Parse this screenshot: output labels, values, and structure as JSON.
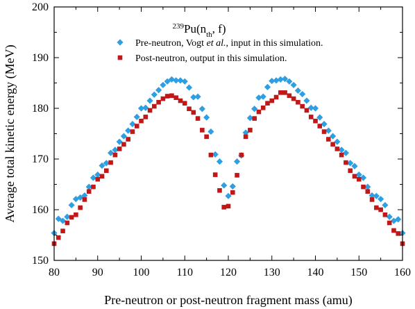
{
  "chart_data": {
    "type": "scatter",
    "title": "",
    "legend_title": {
      "sup": "239",
      "base": "Pu(n",
      "sub": "th",
      "tail": ", f)"
    },
    "xlabel": "Pre-neutron or post-neutron fragment mass (amu)",
    "ylabel": "Average total kinetic energy (MeV)",
    "xlim": [
      80,
      160
    ],
    "ylim": [
      150,
      200
    ],
    "xticks": [
      80,
      90,
      100,
      110,
      120,
      130,
      140,
      150,
      160
    ],
    "yticks": [
      150,
      160,
      170,
      180,
      190,
      200
    ],
    "grid": false,
    "legend_position": "top-center",
    "series": [
      {
        "name_parts": {
          "a": "Pre-neutron, Vogt ",
          "italic": "et al.",
          "b": ", input in this simulation."
        },
        "marker": "diamond",
        "color": "#2e9fe0",
        "points": [
          [
            80,
            155.4
          ],
          [
            81,
            158.2
          ],
          [
            82,
            157.8
          ],
          [
            83,
            158.6
          ],
          [
            84,
            160.9
          ],
          [
            85,
            162.1
          ],
          [
            86,
            162.4
          ],
          [
            87,
            162.8
          ],
          [
            88,
            164.5
          ],
          [
            89,
            166.3
          ],
          [
            90,
            166.9
          ],
          [
            91,
            168.7
          ],
          [
            92,
            169.2
          ],
          [
            93,
            171.2
          ],
          [
            94,
            171.8
          ],
          [
            95,
            173.4
          ],
          [
            96,
            174.5
          ],
          [
            97,
            175.6
          ],
          [
            98,
            176.9
          ],
          [
            99,
            178.3
          ],
          [
            100,
            180.0
          ],
          [
            101,
            180.1
          ],
          [
            102,
            181.5
          ],
          [
            103,
            182.7
          ],
          [
            104,
            183.6
          ],
          [
            105,
            184.6
          ],
          [
            106,
            185.3
          ],
          [
            107,
            185.7
          ],
          [
            108,
            185.5
          ],
          [
            109,
            185.5
          ],
          [
            110,
            185.3
          ],
          [
            111,
            184.1
          ],
          [
            112,
            182.2
          ],
          [
            113,
            182.3
          ],
          [
            114,
            179.9
          ],
          [
            115,
            178.2
          ],
          [
            116,
            175.4
          ],
          [
            117,
            170.9
          ],
          [
            118,
            169.5
          ],
          [
            119,
            164.8
          ],
          [
            120,
            162.7
          ],
          [
            121,
            164.6
          ],
          [
            122,
            169.5
          ],
          [
            123,
            170.7
          ],
          [
            124,
            175.2
          ],
          [
            125,
            178.1
          ],
          [
            126,
            179.9
          ],
          [
            127,
            182.1
          ],
          [
            128,
            182.3
          ],
          [
            129,
            184.2
          ],
          [
            130,
            185.4
          ],
          [
            131,
            185.5
          ],
          [
            132,
            185.7
          ],
          [
            133,
            185.8
          ],
          [
            134,
            185.3
          ],
          [
            135,
            184.6
          ],
          [
            136,
            183.5
          ],
          [
            137,
            182.8
          ],
          [
            138,
            181.5
          ],
          [
            139,
            180.1
          ],
          [
            140,
            180.0
          ],
          [
            141,
            178.2
          ],
          [
            142,
            176.9
          ],
          [
            143,
            175.6
          ],
          [
            144,
            174.5
          ],
          [
            145,
            173.4
          ],
          [
            146,
            171.8
          ],
          [
            147,
            171.2
          ],
          [
            148,
            169.2
          ],
          [
            149,
            168.6
          ],
          [
            150,
            166.9
          ],
          [
            151,
            166.3
          ],
          [
            152,
            164.5
          ],
          [
            153,
            162.8
          ],
          [
            154,
            162.7
          ],
          [
            155,
            162.1
          ],
          [
            156,
            160.9
          ],
          [
            157,
            158.6
          ],
          [
            158,
            157.8
          ],
          [
            159,
            158.1
          ],
          [
            160,
            155.4
          ]
        ]
      },
      {
        "name": "Post-neutron, output in this simulation.",
        "marker": "square",
        "color": "#c01818",
        "points": [
          [
            80,
            153.3
          ],
          [
            81,
            154.5
          ],
          [
            82,
            155.8
          ],
          [
            83,
            157.4
          ],
          [
            84,
            158.5
          ],
          [
            85,
            159.0
          ],
          [
            86,
            160.4
          ],
          [
            87,
            162.0
          ],
          [
            88,
            163.6
          ],
          [
            89,
            164.5
          ],
          [
            90,
            166.0
          ],
          [
            91,
            166.6
          ],
          [
            92,
            167.7
          ],
          [
            93,
            169.3
          ],
          [
            94,
            170.8
          ],
          [
            95,
            172.0
          ],
          [
            96,
            172.9
          ],
          [
            97,
            173.9
          ],
          [
            98,
            175.4
          ],
          [
            99,
            176.5
          ],
          [
            100,
            177.5
          ],
          [
            101,
            178.3
          ],
          [
            102,
            179.6
          ],
          [
            103,
            180.4
          ],
          [
            104,
            181.2
          ],
          [
            105,
            181.9
          ],
          [
            106,
            182.4
          ],
          [
            107,
            182.5
          ],
          [
            108,
            182.1
          ],
          [
            109,
            181.5
          ],
          [
            110,
            181.0
          ],
          [
            111,
            179.9
          ],
          [
            112,
            179.2
          ],
          [
            113,
            178.0
          ],
          [
            114,
            175.7
          ],
          [
            115,
            174.4
          ],
          [
            116,
            170.8
          ],
          [
            117,
            166.9
          ],
          [
            118,
            163.8
          ],
          [
            119,
            160.5
          ],
          [
            120,
            160.7
          ],
          [
            121,
            163.4
          ],
          [
            122,
            166.8
          ],
          [
            123,
            170.8
          ],
          [
            124,
            174.4
          ],
          [
            125,
            175.7
          ],
          [
            126,
            178.0
          ],
          [
            127,
            179.3
          ],
          [
            128,
            180.1
          ],
          [
            129,
            181.0
          ],
          [
            130,
            181.5
          ],
          [
            131,
            182.2
          ],
          [
            132,
            183.1
          ],
          [
            133,
            183.1
          ],
          [
            134,
            182.5
          ],
          [
            135,
            181.9
          ],
          [
            136,
            181.2
          ],
          [
            137,
            180.4
          ],
          [
            138,
            179.6
          ],
          [
            139,
            178.3
          ],
          [
            140,
            177.5
          ],
          [
            141,
            176.5
          ],
          [
            142,
            175.4
          ],
          [
            143,
            173.9
          ],
          [
            144,
            172.9
          ],
          [
            145,
            172.0
          ],
          [
            146,
            170.8
          ],
          [
            147,
            169.3
          ],
          [
            148,
            167.7
          ],
          [
            149,
            166.6
          ],
          [
            150,
            166.0
          ],
          [
            151,
            164.5
          ],
          [
            152,
            163.6
          ],
          [
            153,
            162.0
          ],
          [
            154,
            160.4
          ],
          [
            155,
            160.0
          ],
          [
            156,
            159.0
          ],
          [
            157,
            157.4
          ],
          [
            158,
            155.9
          ],
          [
            159,
            155.3
          ],
          [
            160,
            153.3
          ]
        ]
      }
    ]
  }
}
